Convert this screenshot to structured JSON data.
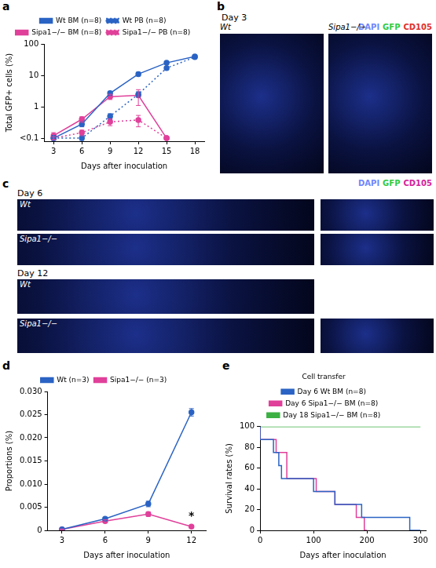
{
  "chart_data": [
    {
      "panel_label": "a",
      "type": "line",
      "x_label": "Days after inoculation",
      "y_label": "Total GFP+ cells (%)",
      "x": [
        3,
        6,
        9,
        12,
        15,
        18
      ],
      "xlim": [
        2,
        19
      ],
      "xticks": [
        3,
        6,
        9,
        12,
        15,
        18
      ],
      "ylim": [
        0.08,
        100
      ],
      "yticks": [
        {
          "value": 0.1,
          "label": "<0.1"
        },
        1,
        10,
        100
      ],
      "log": "y",
      "grid": false,
      "legend": "top",
      "series": [
        {
          "name": "Wt BM (n=8)",
          "color": "#2a63c4",
          "marker": "circle",
          "line_style": "solid",
          "values": [
            0.1,
            0.28,
            2.7,
            11,
            25,
            40
          ],
          "errors": [
            0.02,
            0.05,
            0.4,
            1.5,
            2,
            4
          ]
        },
        {
          "name": "Wt PB (n=8)",
          "color": "#2a63c4",
          "marker": "circle",
          "line_style": "dotted",
          "values": [
            0.1,
            0.1,
            0.5,
            2.5,
            17,
            38
          ],
          "errors": [
            0.01,
            0.02,
            0.1,
            0.5,
            2,
            4
          ]
        },
        {
          "name": "Sipa1−/− BM (n=8)",
          "color": "#e0409a",
          "marker": "circle",
          "line_style": "solid",
          "values": [
            0.12,
            0.4,
            2.1,
            2.3,
            0.1,
            null
          ],
          "errors": [
            0.03,
            0.08,
            0.4,
            1.2,
            0.01,
            null
          ]
        },
        {
          "name": "Sipa1−/− PB (n=8)",
          "color": "#e0409a",
          "marker": "circle",
          "line_style": "dotted",
          "values": [
            0.1,
            0.15,
            0.33,
            0.38,
            0.1,
            null
          ],
          "errors": [
            0.01,
            0.03,
            0.08,
            0.15,
            0.01,
            null
          ]
        }
      ]
    },
    {
      "panel_label": "d",
      "type": "line",
      "x_label": "Days after inoculation",
      "y_label": "Proportions (%)",
      "x": [
        3,
        6,
        9,
        12
      ],
      "xlim": [
        2,
        13
      ],
      "xticks": [
        3,
        6,
        9,
        12
      ],
      "ylim": [
        0,
        0.03
      ],
      "yticks": [
        0,
        0.005,
        {
          "value": 0.01,
          "label": "0.010"
        },
        0.015,
        {
          "value": 0.02,
          "label": "0.020"
        },
        0.025,
        {
          "value": 0.03,
          "label": "0.030"
        }
      ],
      "grid": false,
      "legend": "top",
      "series": [
        {
          "name": "Wt (n=3)",
          "color": "#2a63c4",
          "marker": "circle",
          "line_style": "solid",
          "values": [
            0.0002,
            0.0025,
            0.0057,
            0.0255
          ],
          "errors": [
            0.0001,
            0.0003,
            0.0006,
            0.0008
          ]
        },
        {
          "name": "Sipa1−/− (n=3)",
          "color": "#e0409a",
          "marker": "circle",
          "line_style": "solid",
          "values": [
            0.0002,
            0.002,
            0.0035,
            0.0008
          ],
          "errors": [
            0.0001,
            0.0003,
            0.0005,
            0.0002
          ]
        }
      ],
      "annotations": [
        {
          "text": "*",
          "x": 12,
          "y": 0.0008
        }
      ]
    },
    {
      "panel_label": "e",
      "type": "step",
      "x_label": "Days after inoculation",
      "y_label": "Survival rates (%)",
      "xlim": [
        0,
        310
      ],
      "xticks": [
        0,
        100,
        200,
        300
      ],
      "ylim": [
        0,
        100
      ],
      "yticks": [
        0,
        20,
        40,
        60,
        80,
        100
      ],
      "grid": false,
      "legend": "top",
      "legend_title": "Cell transfer",
      "series": [
        {
          "name": "Day 6 Wt BM (n=8)",
          "color": "#2a63c4",
          "line_style": "solid",
          "x": [
            0,
            25,
            35,
            40,
            100,
            140,
            190,
            280,
            300
          ],
          "values": [
            100,
            87.5,
            75,
            62.5,
            50,
            37.5,
            25,
            12.5,
            0
          ]
        },
        {
          "name": "Day 6 Sipa1−/− BM (n=8)",
          "color": "#e0409a",
          "line_style": "solid",
          "x": [
            0,
            30,
            50,
            105,
            140,
            180,
            195,
            200
          ],
          "values": [
            100,
            87.5,
            75,
            50,
            37.5,
            25,
            12.5,
            0
          ]
        },
        {
          "name": "Day 18 Sipa1−/− BM (n=8)",
          "color": "#3cb043",
          "line_style": "solid",
          "x": [
            0,
            300
          ],
          "values": [
            100,
            100
          ]
        }
      ]
    }
  ],
  "image_panels": [
    {
      "panel_label": "b",
      "title": "Day 3",
      "stain_labels": [
        "DAPI",
        "GFP",
        "CD105"
      ],
      "stain_colors": [
        "#6f86ff",
        "#2ecc40",
        "#e0302a"
      ],
      "images": [
        "Wt",
        "Sipa1−/−"
      ]
    },
    {
      "panel_label": "c",
      "stain_labels": [
        "DAPI",
        "GFP",
        "CD105"
      ],
      "stain_colors": [
        "#6f86ff",
        "#2ecc40",
        "#d4219b"
      ],
      "rows": [
        {
          "title": "Day 6",
          "images": [
            "Wt",
            "Sipa1−/−"
          ]
        },
        {
          "title": "Day 12",
          "images": [
            "Wt",
            "Sipa1−/−"
          ]
        }
      ]
    }
  ]
}
